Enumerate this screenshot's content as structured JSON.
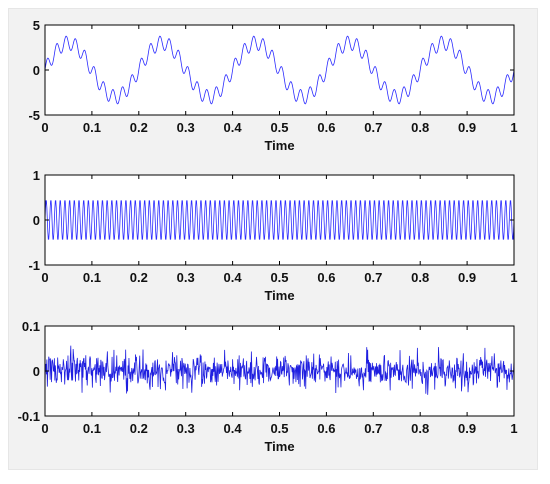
{
  "chart_data": [
    {
      "type": "line",
      "title": "",
      "xlabel": "Time",
      "ylabel": "",
      "xlim": [
        0,
        1
      ],
      "ylim": [
        -5,
        5
      ],
      "x_ticks": [
        "0",
        "0.1",
        "0.2",
        "0.3",
        "0.4",
        "0.5",
        "0.6",
        "0.7",
        "0.8",
        "0.9",
        "1"
      ],
      "y_ticks": [
        "5",
        "0",
        "-5"
      ],
      "grid": false,
      "series": [
        {
          "color": "#2b2bff",
          "signal": {
            "kind": "sum-of-sines",
            "components": [
              {
                "amplitude": 3,
                "frequency_hz": 5,
                "phase_cycles": 0
              },
              {
                "amplitude": 0.8,
                "frequency_hz": 50,
                "phase_cycles": 0
              }
            ],
            "samples": 1000
          }
        }
      ]
    },
    {
      "type": "line",
      "title": "",
      "xlabel": "Time",
      "ylabel": "",
      "xlim": [
        0,
        1
      ],
      "ylim": [
        -1,
        1
      ],
      "x_ticks": [
        "0",
        "0.1",
        "0.2",
        "0.3",
        "0.4",
        "0.5",
        "0.6",
        "0.7",
        "0.8",
        "0.9",
        "1"
      ],
      "y_ticks": [
        "1",
        "0",
        "-1"
      ],
      "grid": false,
      "series": [
        {
          "color": "#2b2bff",
          "signal": {
            "kind": "sum-of-sines",
            "components": [
              {
                "amplitude": 0.45,
                "frequency_hz": 100,
                "phase_cycles": 0
              }
            ],
            "samples": 1000
          }
        }
      ]
    },
    {
      "type": "line",
      "title": "",
      "xlabel": "Time",
      "ylabel": "",
      "xlim": [
        0,
        1
      ],
      "ylim": [
        -0.1,
        0.1
      ],
      "x_ticks": [
        "0",
        "0.1",
        "0.2",
        "0.3",
        "0.4",
        "0.5",
        "0.6",
        "0.7",
        "0.8",
        "0.9",
        "1"
      ],
      "y_ticks": [
        "0.1",
        "0",
        "-0.1"
      ],
      "grid": false,
      "series": [
        {
          "color": "#1f1fe0",
          "signal": {
            "kind": "noise",
            "std": 0.018,
            "max_abs": 0.06,
            "samples": 1000
          }
        }
      ]
    }
  ]
}
